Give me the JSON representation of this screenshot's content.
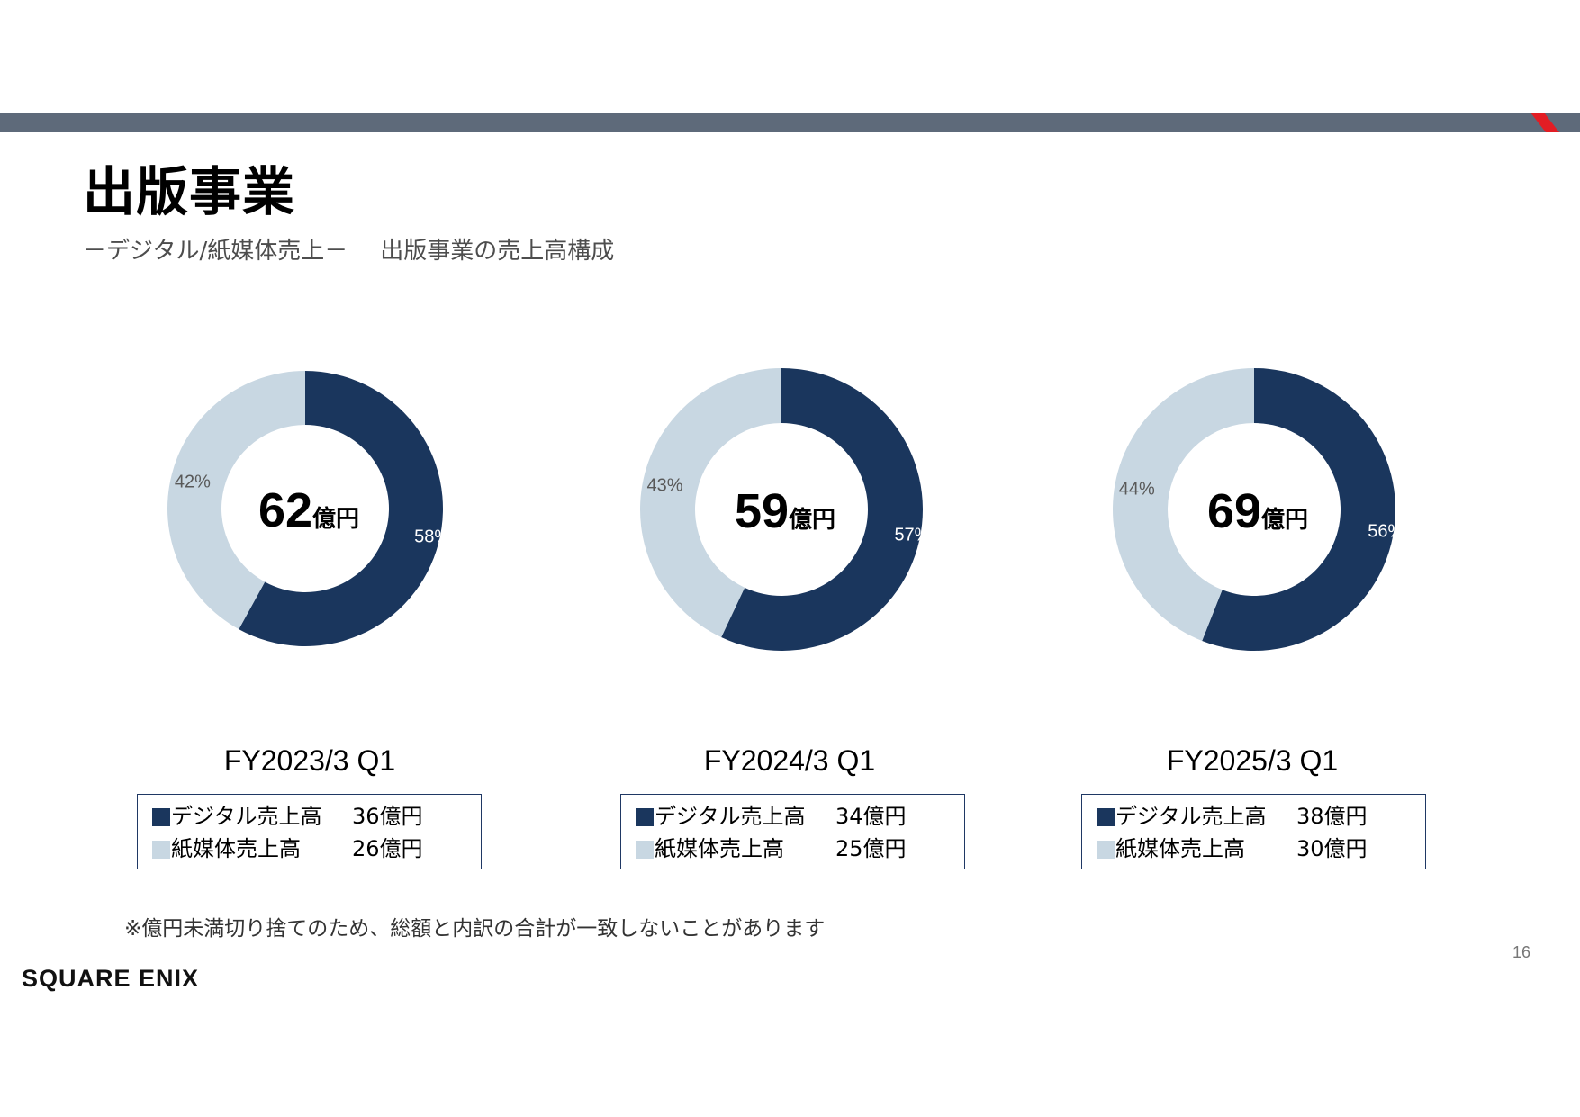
{
  "header": {
    "title": "出版事業",
    "subtitle_a": "－デジタル/紙媒体売上－",
    "subtitle_b": "出版事業の売上高構成"
  },
  "colors": {
    "digital": "#1a365d",
    "print": "#c8d7e2",
    "bar": "#5e6a7a",
    "accent": "#e21d24"
  },
  "chart_data": [
    {
      "type": "pie",
      "title": "FY2023/3 Q1",
      "center_value": "62",
      "center_unit": "億円",
      "categories": [
        "デジタル売上高",
        "紙媒体売上高"
      ],
      "values": [
        58,
        42
      ],
      "value_labels": [
        "58%",
        "42%"
      ],
      "amounts": [
        "36億円",
        "26億円"
      ]
    },
    {
      "type": "pie",
      "title": "FY2024/3 Q1",
      "center_value": "59",
      "center_unit": "億円",
      "categories": [
        "デジタル売上高",
        "紙媒体売上高"
      ],
      "values": [
        57,
        43
      ],
      "value_labels": [
        "57%",
        "43%"
      ],
      "amounts": [
        "34億円",
        "25億円"
      ]
    },
    {
      "type": "pie",
      "title": "FY2025/3 Q1",
      "center_value": "69",
      "center_unit": "億円",
      "categories": [
        "デジタル売上高",
        "紙媒体売上高"
      ],
      "values": [
        56,
        44
      ],
      "value_labels": [
        "56%",
        "44%"
      ],
      "amounts": [
        "38億円",
        "30億円"
      ]
    }
  ],
  "footnote": "※億円未満切り捨てのため、総額と内訳の合計が一致しないことがあります",
  "page_number": "16",
  "logo": "SQUARE ENIX"
}
